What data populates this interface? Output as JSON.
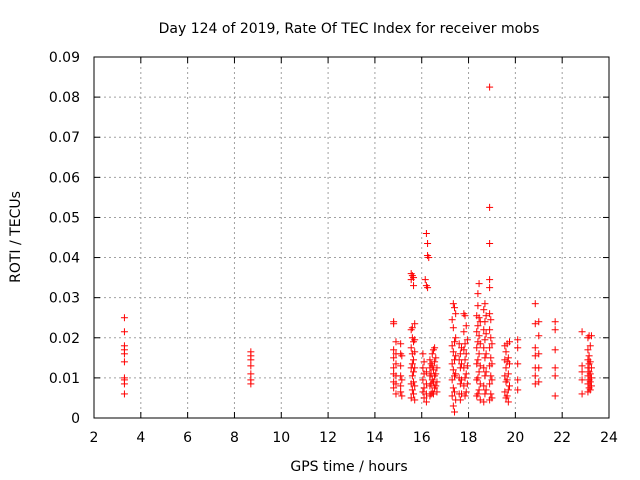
{
  "chart_data": {
    "type": "scatter",
    "title": "Day 124 of 2019, Rate Of TEC Index for receiver mobs",
    "xlabel": "GPS time / hours",
    "ylabel": "ROTI / TECUs",
    "xlim": [
      2,
      24
    ],
    "ylim": [
      0,
      0.09
    ],
    "x_ticks": [
      "2",
      "4",
      "6",
      "8",
      "10",
      "12",
      "14",
      "16",
      "18",
      "20",
      "22",
      "24"
    ],
    "y_ticks": [
      "0",
      "0.01",
      "0.02",
      "0.03",
      "0.04",
      "0.05",
      "0.06",
      "0.07",
      "0.08",
      "0.09"
    ],
    "grid": true,
    "marker": "+",
    "color": "#ff0000",
    "series": [
      {
        "name": "ROTI",
        "points": [
          [
            3.3,
            0.025
          ],
          [
            3.3,
            0.0215
          ],
          [
            3.3,
            0.018
          ],
          [
            3.3,
            0.017
          ],
          [
            3.3,
            0.016
          ],
          [
            3.3,
            0.014
          ],
          [
            3.3,
            0.01
          ],
          [
            3.3,
            0.0095
          ],
          [
            3.3,
            0.0085
          ],
          [
            3.3,
            0.006
          ],
          [
            8.7,
            0.0165
          ],
          [
            8.7,
            0.0155
          ],
          [
            8.7,
            0.0145
          ],
          [
            8.7,
            0.013
          ],
          [
            8.7,
            0.011
          ],
          [
            8.7,
            0.0095
          ],
          [
            8.7,
            0.0085
          ],
          [
            14.8,
            0.024
          ],
          [
            14.8,
            0.0235
          ],
          [
            14.8,
            0.017
          ],
          [
            14.8,
            0.015
          ],
          [
            14.8,
            0.0125
          ],
          [
            14.8,
            0.011
          ],
          [
            14.8,
            0.009
          ],
          [
            14.8,
            0.0075
          ],
          [
            14.9,
            0.019
          ],
          [
            14.9,
            0.016
          ],
          [
            14.9,
            0.0135
          ],
          [
            14.9,
            0.0105
          ],
          [
            14.9,
            0.0085
          ],
          [
            14.9,
            0.006
          ],
          [
            15.1,
            0.0185
          ],
          [
            15.1,
            0.016
          ],
          [
            15.1,
            0.013
          ],
          [
            15.1,
            0.0105
          ],
          [
            15.1,
            0.008
          ],
          [
            15.1,
            0.0065
          ],
          [
            15.15,
            0.0155
          ],
          [
            15.15,
            0.0095
          ],
          [
            15.15,
            0.0055
          ],
          [
            15.55,
            0.036
          ],
          [
            15.55,
            0.0345
          ],
          [
            15.55,
            0.022
          ],
          [
            15.55,
            0.0175
          ],
          [
            15.55,
            0.0125
          ],
          [
            15.55,
            0.0085
          ],
          [
            15.55,
            0.005
          ],
          [
            15.6,
            0.0355
          ],
          [
            15.6,
            0.0225
          ],
          [
            15.6,
            0.02
          ],
          [
            15.6,
            0.016
          ],
          [
            15.6,
            0.0135
          ],
          [
            15.6,
            0.0105
          ],
          [
            15.6,
            0.007
          ],
          [
            15.65,
            0.035
          ],
          [
            15.65,
            0.033
          ],
          [
            15.65,
            0.019
          ],
          [
            15.65,
            0.0145
          ],
          [
            15.65,
            0.0115
          ],
          [
            15.65,
            0.009
          ],
          [
            15.65,
            0.006
          ],
          [
            15.7,
            0.0235
          ],
          [
            15.7,
            0.0195
          ],
          [
            15.7,
            0.0165
          ],
          [
            15.7,
            0.0125
          ],
          [
            15.7,
            0.008
          ],
          [
            15.7,
            0.0045
          ],
          [
            16.15,
            0.0345
          ],
          [
            16.2,
            0.033
          ],
          [
            16.2,
            0.046
          ],
          [
            16.25,
            0.0435
          ],
          [
            16.25,
            0.0405
          ],
          [
            16.3,
            0.04
          ],
          [
            16.25,
            0.0325
          ],
          [
            16.05,
            0.016
          ],
          [
            16.05,
            0.0125
          ],
          [
            16.05,
            0.0095
          ],
          [
            16.05,
            0.0065
          ],
          [
            16.1,
            0.014
          ],
          [
            16.1,
            0.011
          ],
          [
            16.1,
            0.0075
          ],
          [
            16.1,
            0.005
          ],
          [
            16.2,
            0.0115
          ],
          [
            16.2,
            0.0085
          ],
          [
            16.2,
            0.006
          ],
          [
            16.2,
            0.004
          ],
          [
            16.35,
            0.0145
          ],
          [
            16.35,
            0.0125
          ],
          [
            16.35,
            0.0105
          ],
          [
            16.35,
            0.008
          ],
          [
            16.35,
            0.0055
          ],
          [
            16.4,
            0.0135
          ],
          [
            16.4,
            0.011
          ],
          [
            16.4,
            0.0085
          ],
          [
            16.4,
            0.006
          ],
          [
            16.45,
            0.016
          ],
          [
            16.45,
            0.013
          ],
          [
            16.45,
            0.0095
          ],
          [
            16.45,
            0.0065
          ],
          [
            16.5,
            0.017
          ],
          [
            16.5,
            0.012
          ],
          [
            16.5,
            0.009
          ],
          [
            16.5,
            0.006
          ],
          [
            16.55,
            0.0175
          ],
          [
            16.55,
            0.014
          ],
          [
            16.55,
            0.0105
          ],
          [
            16.55,
            0.0075
          ],
          [
            16.6,
            0.015
          ],
          [
            16.6,
            0.011
          ],
          [
            16.6,
            0.008
          ],
          [
            16.65,
            0.0125
          ],
          [
            16.65,
            0.009
          ],
          [
            16.65,
            0.0065
          ],
          [
            17.3,
            0.0245
          ],
          [
            17.3,
            0.018
          ],
          [
            17.3,
            0.0135
          ],
          [
            17.3,
            0.0095
          ],
          [
            17.3,
            0.0055
          ],
          [
            17.35,
            0.0285
          ],
          [
            17.35,
            0.0225
          ],
          [
            17.35,
            0.0165
          ],
          [
            17.35,
            0.012
          ],
          [
            17.35,
            0.0075
          ],
          [
            17.35,
            0.003
          ],
          [
            17.4,
            0.0275
          ],
          [
            17.4,
            0.019
          ],
          [
            17.4,
            0.0145
          ],
          [
            17.4,
            0.0105
          ],
          [
            17.4,
            0.0065
          ],
          [
            17.4,
            0.0015
          ],
          [
            17.45,
            0.026
          ],
          [
            17.45,
            0.02
          ],
          [
            17.45,
            0.0155
          ],
          [
            17.45,
            0.011
          ],
          [
            17.45,
            0.0045
          ],
          [
            17.6,
            0.0185
          ],
          [
            17.6,
            0.0145
          ],
          [
            17.6,
            0.01
          ],
          [
            17.6,
            0.006
          ],
          [
            17.65,
            0.016
          ],
          [
            17.65,
            0.0125
          ],
          [
            17.65,
            0.0085
          ],
          [
            17.65,
            0.0045
          ],
          [
            17.7,
            0.0175
          ],
          [
            17.7,
            0.0135
          ],
          [
            17.7,
            0.0095
          ],
          [
            17.7,
            0.006
          ],
          [
            17.8,
            0.026
          ],
          [
            17.8,
            0.0215
          ],
          [
            17.8,
            0.017
          ],
          [
            17.8,
            0.0125
          ],
          [
            17.8,
            0.008
          ],
          [
            17.85,
            0.0255
          ],
          [
            17.85,
            0.0185
          ],
          [
            17.85,
            0.0145
          ],
          [
            17.85,
            0.01
          ],
          [
            17.85,
            0.0055
          ],
          [
            17.9,
            0.023
          ],
          [
            17.9,
            0.016
          ],
          [
            17.9,
            0.011
          ],
          [
            17.9,
            0.0065
          ],
          [
            17.95,
            0.0195
          ],
          [
            17.95,
            0.013
          ],
          [
            17.95,
            0.0085
          ],
          [
            18.35,
            0.0255
          ],
          [
            18.35,
            0.0215
          ],
          [
            18.35,
            0.0175
          ],
          [
            18.35,
            0.0135
          ],
          [
            18.35,
            0.0095
          ],
          [
            18.35,
            0.0055
          ],
          [
            18.4,
            0.031
          ],
          [
            18.4,
            0.028
          ],
          [
            18.4,
            0.023
          ],
          [
            18.4,
            0.019
          ],
          [
            18.4,
            0.0145
          ],
          [
            18.4,
            0.01
          ],
          [
            18.4,
            0.006
          ],
          [
            18.45,
            0.0335
          ],
          [
            18.45,
            0.025
          ],
          [
            18.45,
            0.0205
          ],
          [
            18.45,
            0.016
          ],
          [
            18.45,
            0.0115
          ],
          [
            18.45,
            0.007
          ],
          [
            18.5,
            0.024
          ],
          [
            18.5,
            0.0185
          ],
          [
            18.5,
            0.013
          ],
          [
            18.5,
            0.0085
          ],
          [
            18.5,
            0.0045
          ],
          [
            18.65,
            0.027
          ],
          [
            18.65,
            0.022
          ],
          [
            18.65,
            0.0175
          ],
          [
            18.65,
            0.0125
          ],
          [
            18.65,
            0.008
          ],
          [
            18.65,
            0.004
          ],
          [
            18.7,
            0.0285
          ],
          [
            18.7,
            0.024
          ],
          [
            18.7,
            0.0195
          ],
          [
            18.7,
            0.015
          ],
          [
            18.7,
            0.0105
          ],
          [
            18.7,
            0.006
          ],
          [
            18.75,
            0.0255
          ],
          [
            18.75,
            0.021
          ],
          [
            18.75,
            0.016
          ],
          [
            18.75,
            0.0115
          ],
          [
            18.75,
            0.007
          ],
          [
            18.9,
            0.0825
          ],
          [
            18.9,
            0.0525
          ],
          [
            18.9,
            0.0435
          ],
          [
            18.9,
            0.0345
          ],
          [
            18.9,
            0.0325
          ],
          [
            18.9,
            0.026
          ],
          [
            18.9,
            0.022
          ],
          [
            18.9,
            0.0175
          ],
          [
            18.9,
            0.013
          ],
          [
            18.9,
            0.0085
          ],
          [
            18.9,
            0.0045
          ],
          [
            18.95,
            0.0245
          ],
          [
            18.95,
            0.02
          ],
          [
            18.95,
            0.015
          ],
          [
            18.95,
            0.0105
          ],
          [
            18.95,
            0.006
          ],
          [
            19.0,
            0.0185
          ],
          [
            19.0,
            0.0135
          ],
          [
            19.0,
            0.0095
          ],
          [
            19.0,
            0.005
          ],
          [
            19.55,
            0.018
          ],
          [
            19.55,
            0.0145
          ],
          [
            19.55,
            0.0105
          ],
          [
            19.55,
            0.0065
          ],
          [
            19.6,
            0.0165
          ],
          [
            19.6,
            0.0125
          ],
          [
            19.6,
            0.009
          ],
          [
            19.6,
            0.005
          ],
          [
            19.65,
            0.0185
          ],
          [
            19.65,
            0.014
          ],
          [
            19.65,
            0.0095
          ],
          [
            19.65,
            0.0055
          ],
          [
            19.7,
            0.015
          ],
          [
            19.7,
            0.011
          ],
          [
            19.7,
            0.007
          ],
          [
            19.7,
            0.004
          ],
          [
            19.75,
            0.019
          ],
          [
            19.75,
            0.0135
          ],
          [
            19.75,
            0.008
          ],
          [
            20.1,
            0.0195
          ],
          [
            20.1,
            0.0175
          ],
          [
            20.1,
            0.0135
          ],
          [
            20.1,
            0.0095
          ],
          [
            20.1,
            0.007
          ],
          [
            20.85,
            0.0285
          ],
          [
            20.85,
            0.0235
          ],
          [
            20.85,
            0.0175
          ],
          [
            20.85,
            0.0155
          ],
          [
            20.85,
            0.0125
          ],
          [
            20.85,
            0.0105
          ],
          [
            20.85,
            0.0085
          ],
          [
            21.0,
            0.024
          ],
          [
            21.0,
            0.0205
          ],
          [
            21.0,
            0.016
          ],
          [
            21.0,
            0.0125
          ],
          [
            21.0,
            0.009
          ],
          [
            21.7,
            0.024
          ],
          [
            21.7,
            0.022
          ],
          [
            21.7,
            0.017
          ],
          [
            21.7,
            0.0125
          ],
          [
            21.7,
            0.0105
          ],
          [
            21.7,
            0.0055
          ],
          [
            22.85,
            0.0215
          ],
          [
            22.85,
            0.013
          ],
          [
            22.85,
            0.0115
          ],
          [
            22.85,
            0.0095
          ],
          [
            22.85,
            0.006
          ],
          [
            23.1,
            0.02
          ],
          [
            23.1,
            0.017
          ],
          [
            23.1,
            0.0145
          ],
          [
            23.1,
            0.0125
          ],
          [
            23.1,
            0.0105
          ],
          [
            23.1,
            0.0085
          ],
          [
            23.1,
            0.0065
          ],
          [
            23.15,
            0.0205
          ],
          [
            23.15,
            0.0155
          ],
          [
            23.15,
            0.0135
          ],
          [
            23.15,
            0.0115
          ],
          [
            23.15,
            0.0095
          ],
          [
            23.15,
            0.0075
          ],
          [
            23.2,
            0.018
          ],
          [
            23.2,
            0.014
          ],
          [
            23.2,
            0.011
          ],
          [
            23.2,
            0.009
          ],
          [
            23.2,
            0.007
          ],
          [
            23.25,
            0.0205
          ],
          [
            23.25,
            0.0125
          ],
          [
            23.25,
            0.01
          ],
          [
            23.25,
            0.008
          ]
        ]
      }
    ]
  }
}
